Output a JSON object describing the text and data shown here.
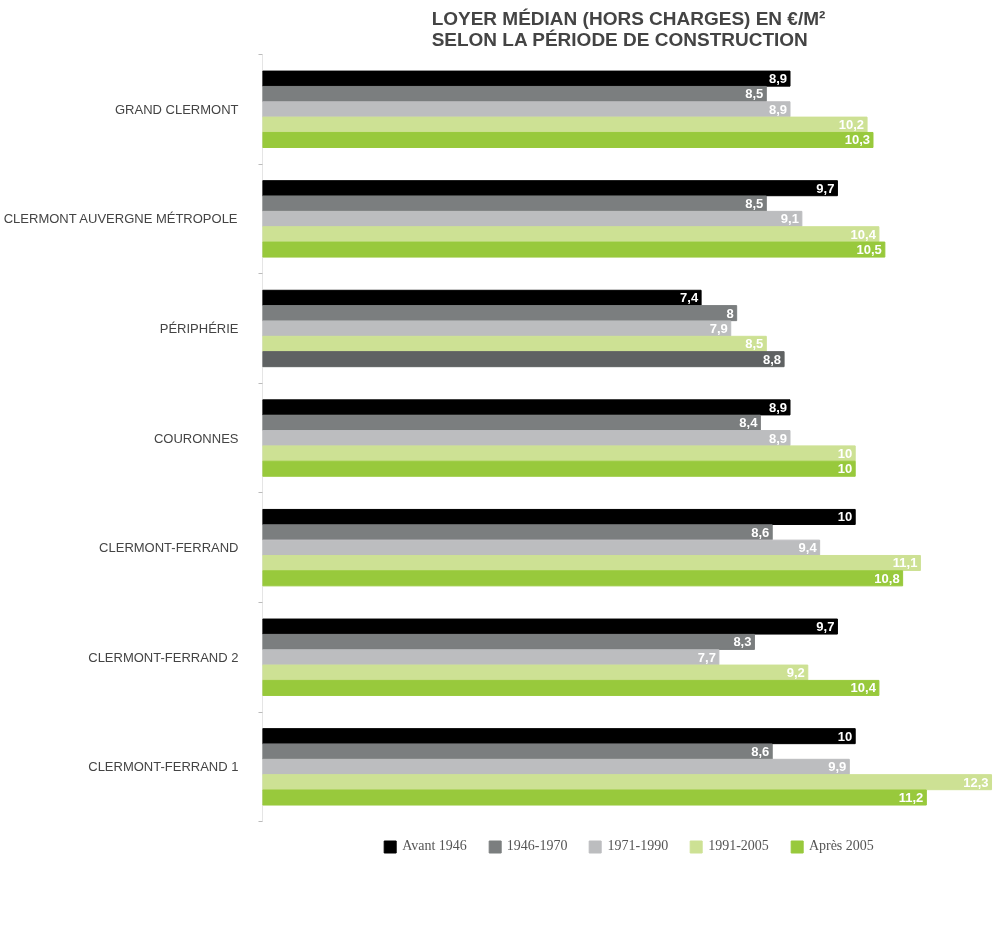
{
  "chart_data": {
    "type": "bar",
    "orientation": "horizontal",
    "title": "LOYER MÉDIAN (HORS CHARGES) EN €/M²\nSELON LA PÉRIODE DE CONSTRUCTION",
    "categories": [
      "GRAND CLERMONT",
      "CLERMONT AUVERGNE MÉTROPOLE",
      "PÉRIPHÉRIE",
      "COURONNES",
      "CLERMONT-FERRAND",
      "CLERMONT-FERRAND 2",
      "CLERMONT-FERRAND 1"
    ],
    "xlim": [
      0,
      12.35
    ],
    "legend": "bottom",
    "grid": false,
    "series": [
      {
        "name": "Avant 1946",
        "color": "#000000",
        "values": [
          8.9,
          9.7,
          7.4,
          8.9,
          10,
          9.7,
          10
        ],
        "value_labels": [
          "8,9",
          "9,7",
          "7,4",
          "8,9",
          "10",
          "9,7",
          "10"
        ]
      },
      {
        "name": "1946-1970",
        "color": "#7b7e7f",
        "values": [
          8.5,
          8.5,
          8,
          8.4,
          8.6,
          8.3,
          8.6
        ],
        "value_labels": [
          "8,5",
          "8,5",
          "8",
          "8,4",
          "8,6",
          "8,3",
          "8,6"
        ]
      },
      {
        "name": "1971-1990",
        "color": "#bcbdbf",
        "values": [
          8.9,
          9.1,
          7.9,
          8.9,
          9.4,
          7.7,
          9.9
        ],
        "value_labels": [
          "8,9",
          "9,1",
          "7,9",
          "8,9",
          "9,4",
          "7,7",
          "9,9"
        ]
      },
      {
        "name": "1991-2005",
        "color": "#cde194",
        "values": [
          10.2,
          10.4,
          8.5,
          10,
          11.1,
          9.2,
          12.3
        ],
        "value_labels": [
          "10,2",
          "10,4",
          "8,5",
          "10",
          "11,1",
          "9,2",
          "12,3"
        ]
      },
      {
        "name": "Après 2005",
        "color": "#98c93c",
        "colors": [
          "#98c93c",
          "#98c93c",
          "#5f6263",
          "#98c93c",
          "#98c93c",
          "#98c93c",
          "#98c93c"
        ],
        "values": [
          10.3,
          10.5,
          8.8,
          10,
          10.8,
          10.4,
          11.2
        ],
        "value_labels": [
          "10,3",
          "10,5",
          "8,8",
          "10",
          "10,8",
          "10,4",
          "11,2"
        ]
      }
    ]
  }
}
